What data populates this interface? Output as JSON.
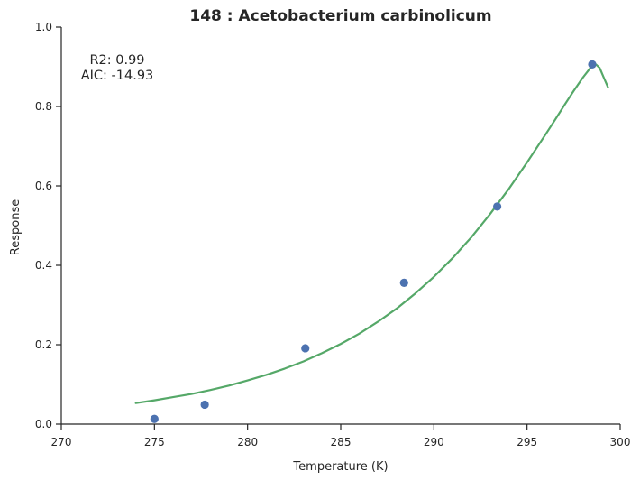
{
  "chart_data": {
    "type": "scatter",
    "title": "148 : Acetobacterium carbinolicum",
    "xlabel": "Temperature (K)",
    "ylabel": "Response",
    "xlim": [
      270,
      300
    ],
    "ylim": [
      0,
      1.0
    ],
    "xticks": [
      270,
      275,
      280,
      285,
      290,
      295,
      300
    ],
    "yticks": [
      0.0,
      0.2,
      0.4,
      0.6,
      0.8,
      1.0
    ],
    "xtick_labels": [
      "270",
      "275",
      "280",
      "285",
      "290",
      "295",
      "300"
    ],
    "ytick_labels": [
      "0.0",
      "0.2",
      "0.4",
      "0.6",
      "0.8",
      "1.0"
    ],
    "grid": false,
    "annotations": [
      "R2: 0.99",
      "AIC: -14.93"
    ],
    "series": [
      {
        "kind": "scatter",
        "color": "#4c72b0",
        "points": [
          {
            "x": 275.0,
            "y": 0.013
          },
          {
            "x": 277.7,
            "y": 0.049
          },
          {
            "x": 283.1,
            "y": 0.191
          },
          {
            "x": 288.4,
            "y": 0.356
          },
          {
            "x": 293.4,
            "y": 0.548
          },
          {
            "x": 298.5,
            "y": 0.906
          }
        ]
      },
      {
        "kind": "line",
        "color": "#55a868",
        "points": [
          {
            "x": 274.0,
            "y": 0.053
          },
          {
            "x": 275.0,
            "y": 0.06
          },
          {
            "x": 276.0,
            "y": 0.068
          },
          {
            "x": 277.0,
            "y": 0.076
          },
          {
            "x": 278.0,
            "y": 0.086
          },
          {
            "x": 279.0,
            "y": 0.097
          },
          {
            "x": 280.0,
            "y": 0.11
          },
          {
            "x": 281.0,
            "y": 0.124
          },
          {
            "x": 282.0,
            "y": 0.14
          },
          {
            "x": 283.0,
            "y": 0.158
          },
          {
            "x": 284.0,
            "y": 0.179
          },
          {
            "x": 285.0,
            "y": 0.202
          },
          {
            "x": 286.0,
            "y": 0.228
          },
          {
            "x": 287.0,
            "y": 0.258
          },
          {
            "x": 288.0,
            "y": 0.291
          },
          {
            "x": 289.0,
            "y": 0.329
          },
          {
            "x": 290.0,
            "y": 0.371
          },
          {
            "x": 291.0,
            "y": 0.418
          },
          {
            "x": 292.0,
            "y": 0.47
          },
          {
            "x": 293.0,
            "y": 0.528
          },
          {
            "x": 294.0,
            "y": 0.591
          },
          {
            "x": 295.0,
            "y": 0.659
          },
          {
            "x": 296.0,
            "y": 0.73
          },
          {
            "x": 296.5,
            "y": 0.766
          },
          {
            "x": 297.0,
            "y": 0.803
          },
          {
            "x": 297.5,
            "y": 0.839
          },
          {
            "x": 298.0,
            "y": 0.873
          },
          {
            "x": 298.4,
            "y": 0.897
          },
          {
            "x": 298.7,
            "y": 0.906
          },
          {
            "x": 298.9,
            "y": 0.897
          },
          {
            "x": 299.1,
            "y": 0.875
          },
          {
            "x": 299.35,
            "y": 0.848
          }
        ]
      }
    ]
  }
}
